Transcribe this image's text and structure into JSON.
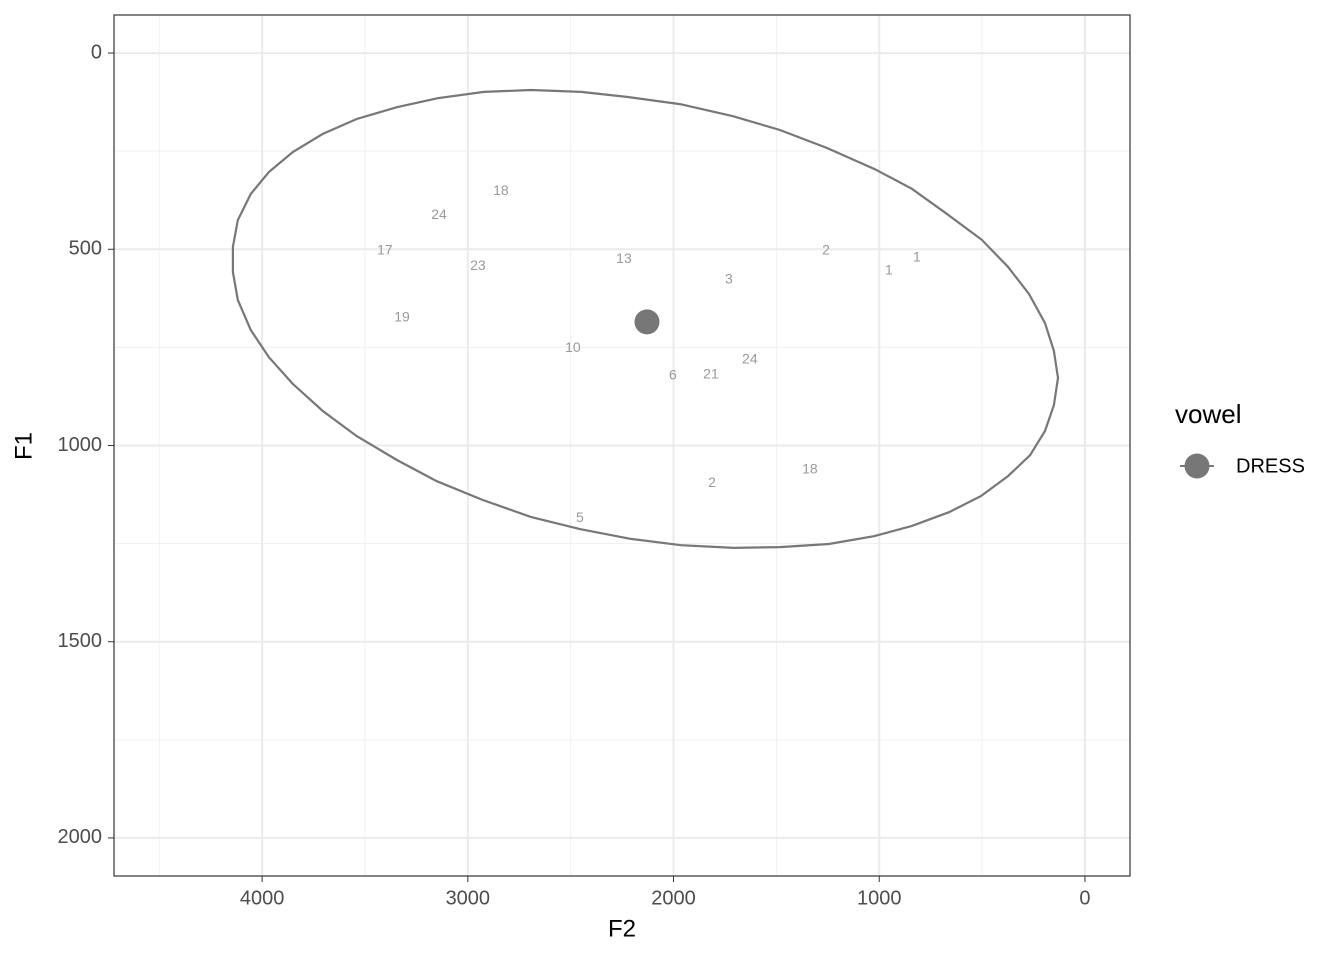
{
  "chart_data": {
    "type": "scatter",
    "x_label": "F2",
    "y_label": "F1",
    "xlim": [
      4720,
      -219
    ],
    "ylim": [
      -97,
      2097
    ],
    "xticks": [
      4000,
      3000,
      2000,
      1000,
      0
    ],
    "yticks": [
      0,
      500,
      1000,
      1500,
      2000
    ],
    "x_minor_ticks": [
      4500,
      3500,
      2500,
      1500,
      500
    ],
    "y_minor_ticks": [
      250,
      750,
      1250,
      1750
    ],
    "grid": true,
    "legend_title": "vowel",
    "legend_position": "right",
    "series": [
      {
        "name": "DRESS",
        "color": "#777777",
        "x": [
          2129
        ],
        "y": [
          685
        ]
      }
    ],
    "labels": {
      "x": [
        2839,
        3140,
        3403,
        2951,
        3320,
        2241,
        2489,
        2003,
        1818,
        1629,
        1731,
        1259,
        953,
        817,
        1337,
        1813,
        2455
      ],
      "y": [
        352,
        413,
        504,
        543,
        675,
        525,
        752,
        823,
        820,
        782,
        578,
        504,
        555,
        522,
        1062,
        1096,
        1185
      ],
      "text": [
        18,
        24,
        17,
        23,
        19,
        13,
        10,
        6,
        21,
        24,
        3,
        2,
        1,
        1,
        18,
        2,
        5
      ]
    },
    "ellipse": {
      "color": "#777777",
      "x": [
        2694,
        2450,
        2222,
        1969,
        1711,
        1483,
        1254,
        1021,
        841,
        676,
        501,
        374,
        272,
        194,
        151,
        131,
        151,
        194,
        267,
        374,
        506,
        661,
        841,
        1026,
        1245,
        1483,
        1707,
        1964,
        2207,
        2455,
        2694,
        2927,
        3151,
        3345,
        3540,
        3705,
        3851,
        3967,
        4055,
        4118,
        4142,
        4142,
        4118,
        4055,
        3967,
        3851,
        3705,
        3540,
        3345,
        3146,
        2922
      ],
      "y": [
        94,
        99,
        112,
        130,
        161,
        196,
        242,
        296,
        346,
        408,
        476,
        545,
        614,
        688,
        759,
        828,
        897,
        963,
        1025,
        1078,
        1129,
        1170,
        1205,
        1231,
        1251,
        1259,
        1261,
        1254,
        1238,
        1213,
        1182,
        1139,
        1091,
        1037,
        976,
        912,
        843,
        775,
        706,
        629,
        558,
        494,
        426,
        359,
        303,
        252,
        206,
        168,
        138,
        115,
        99
      ]
    }
  }
}
